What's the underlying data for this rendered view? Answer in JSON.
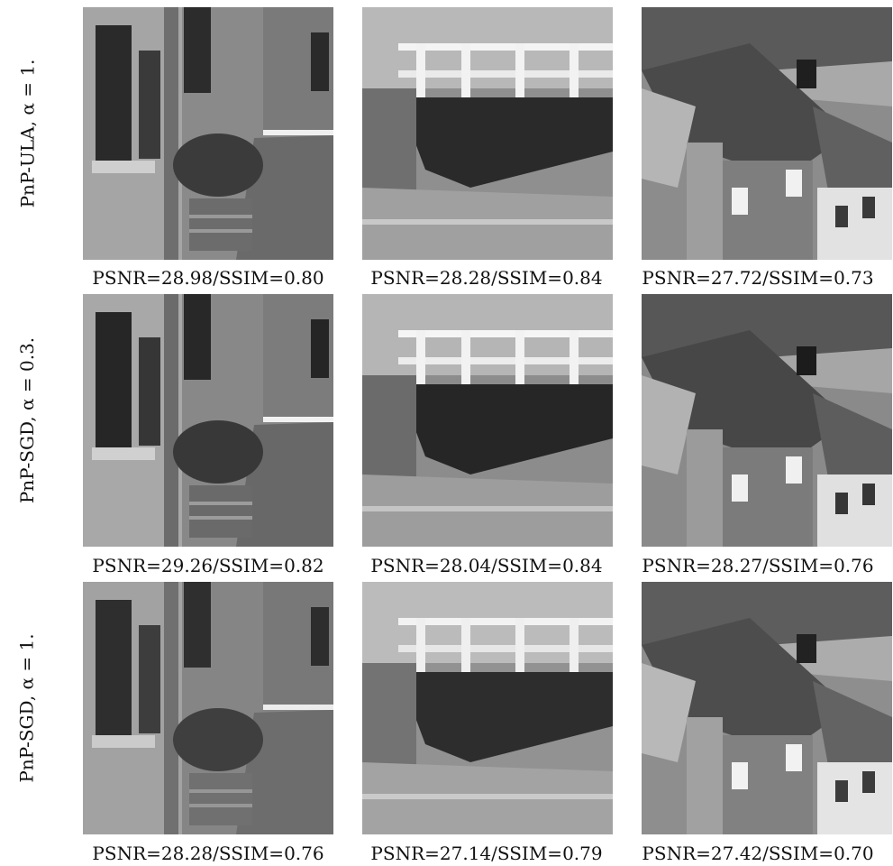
{
  "rows": [
    {
      "label": "PnP-ULA, α = 1.",
      "captions": [
        "PSNR=28.98/SSIM=0.80",
        "PSNR=28.28/SSIM=0.84",
        "PSNR=27.72/SSIM=0.73"
      ]
    },
    {
      "label": "PnP-SGD, α = 0.3.",
      "captions": [
        "PSNR=29.26/SSIM=0.82",
        "PSNR=28.04/SSIM=0.84",
        "PSNR=28.27/SSIM=0.76"
      ]
    },
    {
      "label": "PnP-SGD, α = 1.",
      "captions": [
        "PSNR=28.28/SSIM=0.76",
        "PSNR=27.14/SSIM=0.79",
        "PSNR=27.42/SSIM=0.70"
      ]
    }
  ],
  "columns": [
    {
      "scene": "street-with-window-and-planter"
    },
    {
      "scene": "bridge-over-stream"
    },
    {
      "scene": "village-rooftops"
    }
  ]
}
